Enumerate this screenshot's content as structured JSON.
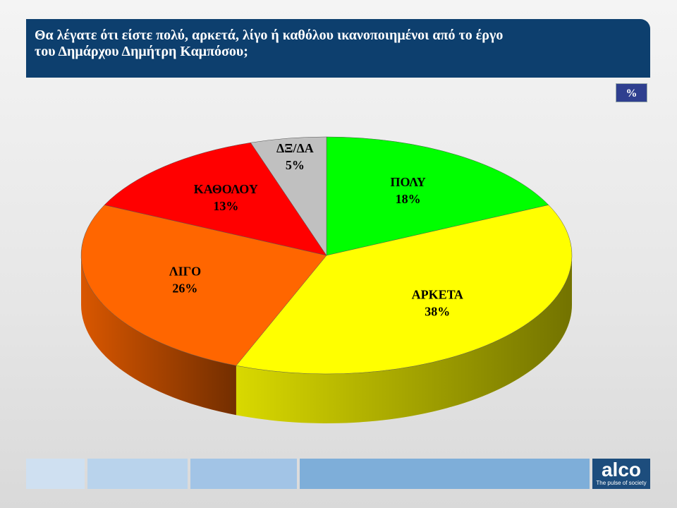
{
  "chart_data": {
    "type": "pie3d",
    "title": "Θα λέγατε ότι είστε πολύ, αρκετά, λίγο ή καθόλου ικανοποιημένοι από το έργο του Δημάρχου Δημήτρη Καμπόσου;",
    "unit_label": "%",
    "categories": [
      "ΠΟΛΥ",
      "ΑΡΚΕΤΑ",
      "ΛΙΓΟ",
      "ΚΑΘΟΛΟΥ",
      "ΔΞ/ΔΑ"
    ],
    "values": [
      18,
      38,
      26,
      13,
      5
    ],
    "value_labels": [
      "18%",
      "38%",
      "26%",
      "13%",
      "5%"
    ],
    "colors": [
      "#00ff00",
      "#ffff00",
      "#ff6600",
      "#ff0000",
      "#c0c0c0"
    ]
  },
  "logo": {
    "name": "alco",
    "tagline": "The pulse of society"
  }
}
